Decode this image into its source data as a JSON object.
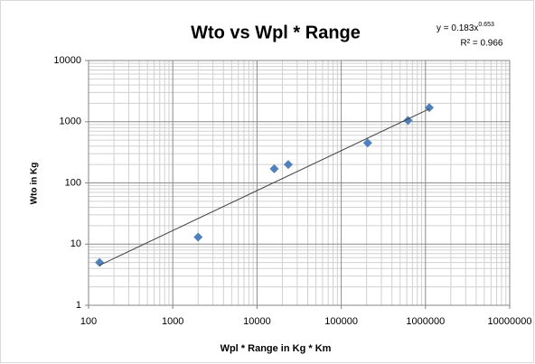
{
  "chart_data": {
    "type": "scatter",
    "title": "Wto vs Wpl * Range",
    "x_label": "Wpl * Range in Kg * Km",
    "y_label": "Wto in Kg",
    "log_x": true,
    "log_y": true,
    "grid": true,
    "minor_grid": true,
    "series": [
      {
        "name": "Wto",
        "color": "#4f81bd",
        "x": [
          135,
          2000,
          16000,
          23500,
          206000,
          620000,
          1110000
        ],
        "values": [
          5,
          13,
          170,
          200,
          450,
          1050,
          1700
        ]
      }
    ],
    "trendline": {
      "coefficient": 0.183,
      "exponent": 0.653,
      "color": "#404040",
      "equation_label": "y = 0.183x",
      "equation_exponent": "0.653",
      "r2_label": "R² = 0.966"
    },
    "xlim": [
      100,
      10000000
    ],
    "xticks": [
      100,
      1000,
      10000,
      100000,
      1000000,
      10000000
    ],
    "ylim": [
      1,
      10000
    ],
    "yticks": [
      1,
      10,
      100,
      1000,
      10000
    ]
  }
}
